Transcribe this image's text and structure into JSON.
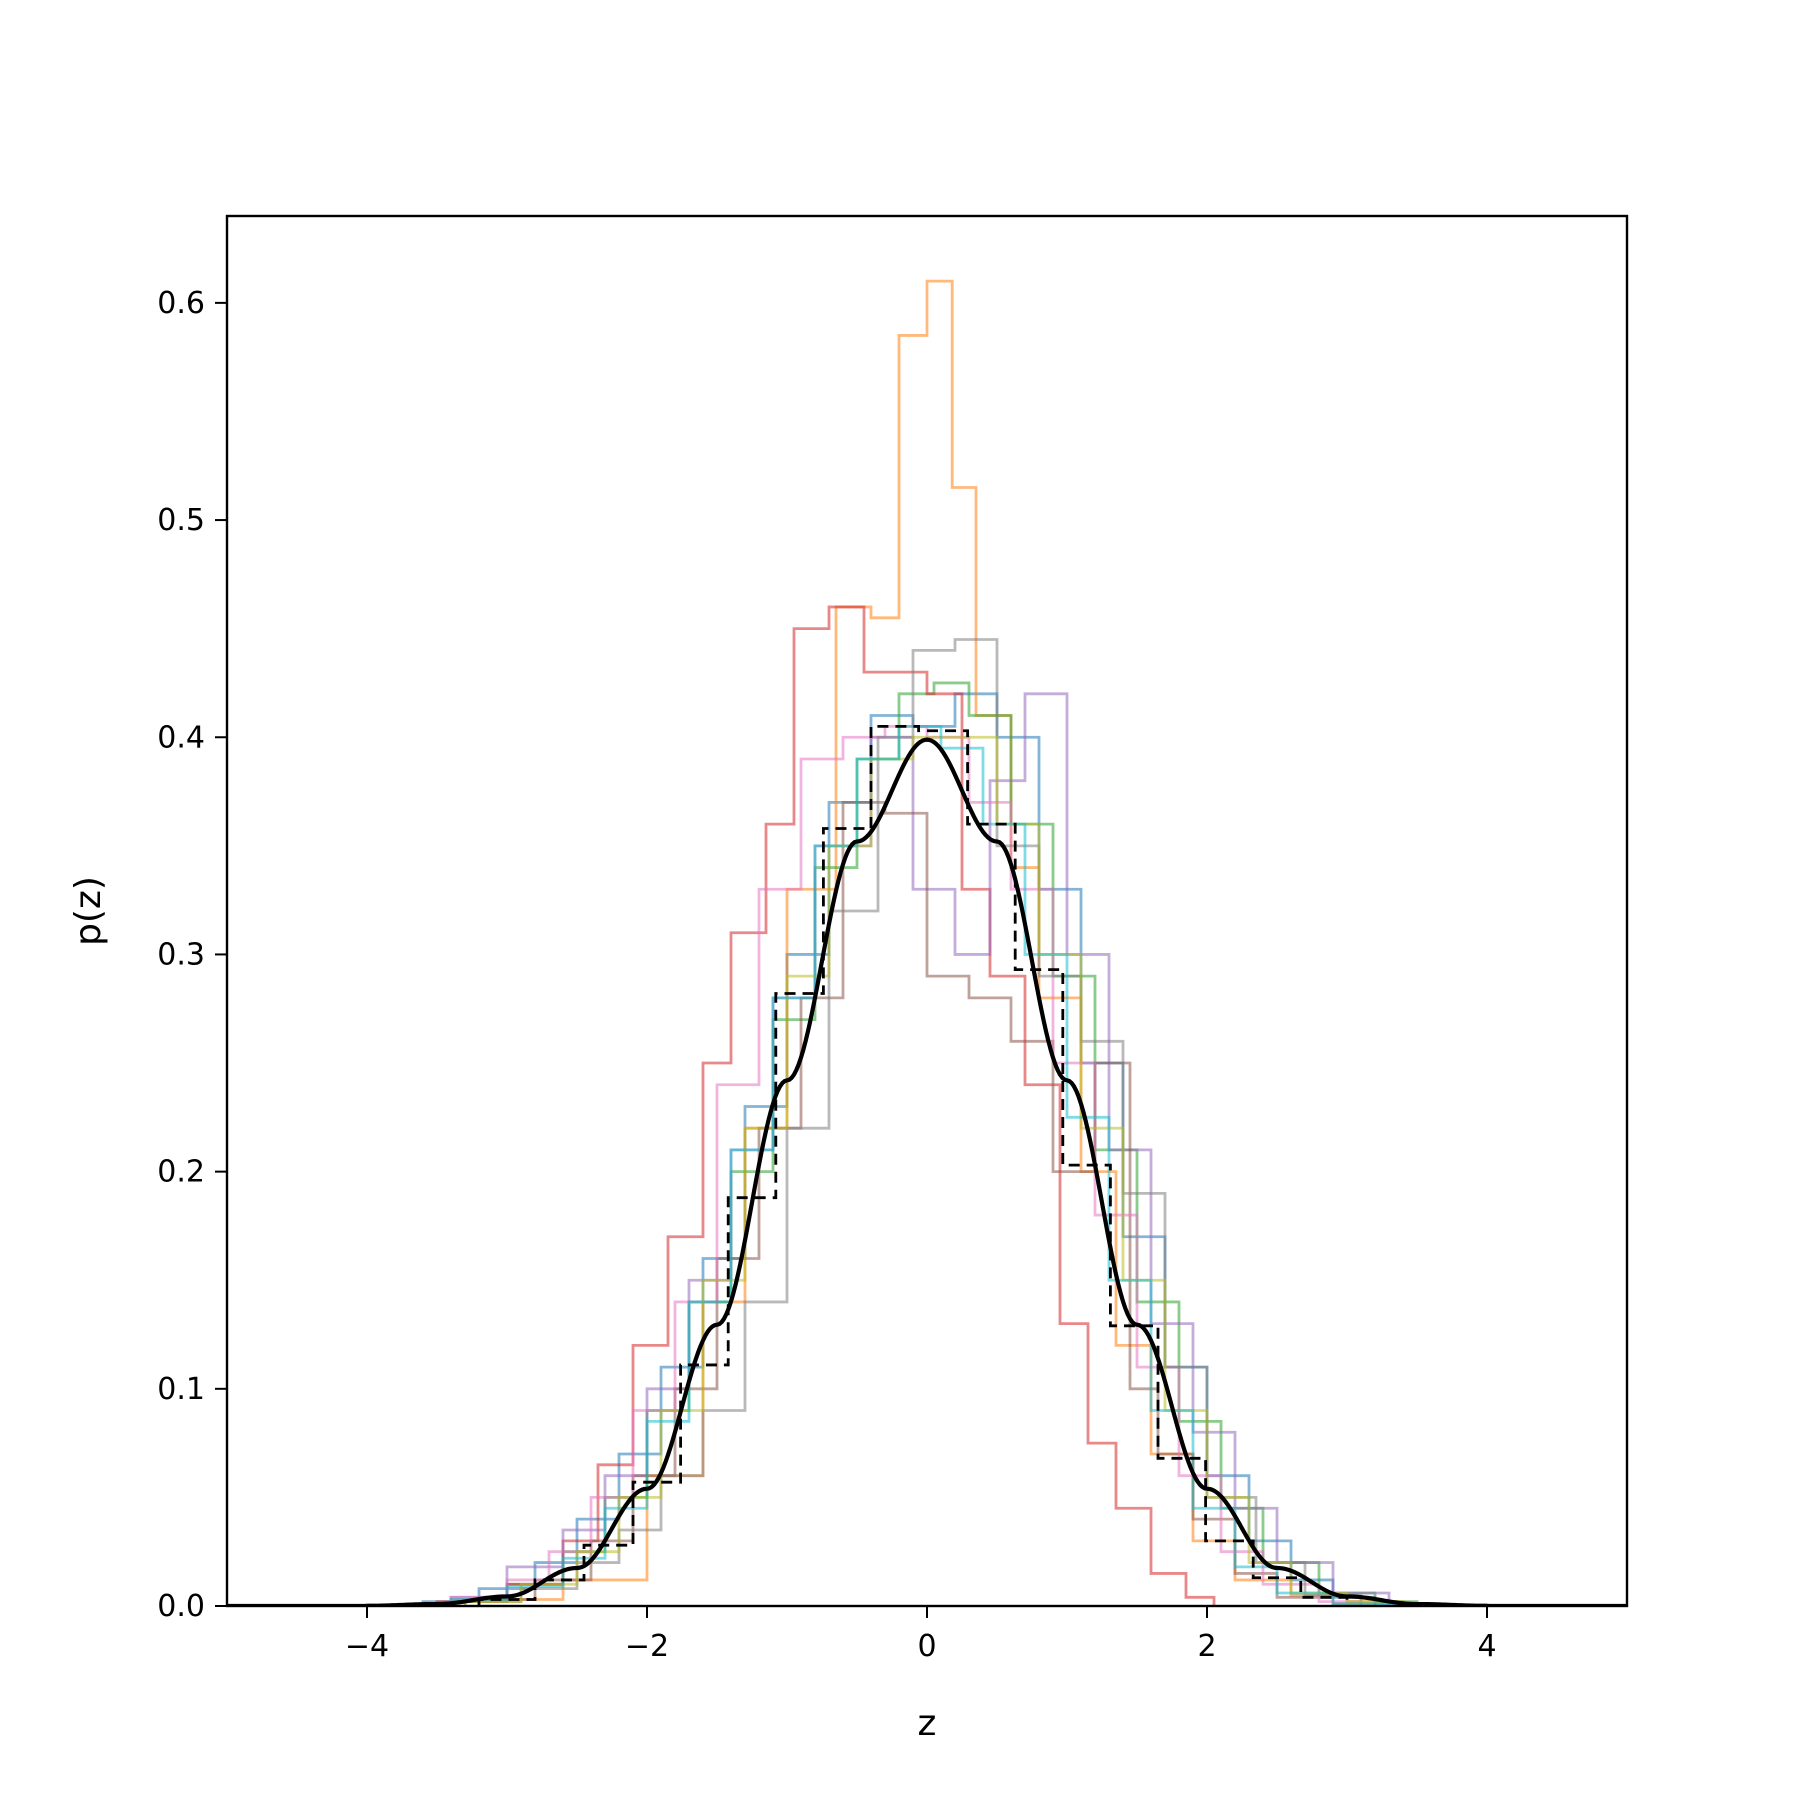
{
  "chart_data": {
    "type": "step_histogram",
    "title": "",
    "xlabel": "z",
    "ylabel": "p(z)",
    "xlim": [
      -5,
      5
    ],
    "ylim": [
      0,
      0.64
    ],
    "x_ticks": [
      -4,
      -2,
      0,
      2,
      4
    ],
    "x_tick_labels": [
      "−4",
      "−2",
      "0",
      "2",
      "4"
    ],
    "y_ticks": [
      0.0,
      0.1,
      0.2,
      0.3,
      0.4,
      0.5,
      0.6
    ],
    "y_tick_labels": [
      "0.0",
      "0.1",
      "0.2",
      "0.3",
      "0.4",
      "0.5",
      "0.6"
    ],
    "grid": false,
    "legend": false,
    "histograms": [
      {
        "color": "#1f77b4",
        "edges": [
          -3.6,
          -3.2,
          -2.8,
          -2.5,
          -2.2,
          -1.9,
          -1.6,
          -1.3,
          -1.0,
          -0.7,
          -0.4,
          -0.1,
          0.2,
          0.5,
          0.8,
          1.1,
          1.4,
          1.7,
          2.0,
          2.3,
          2.6,
          2.9,
          3.2,
          3.6
        ],
        "heights": [
          0.002,
          0.008,
          0.02,
          0.04,
          0.07,
          0.11,
          0.16,
          0.23,
          0.3,
          0.37,
          0.41,
          0.405,
          0.42,
          0.4,
          0.33,
          0.25,
          0.17,
          0.11,
          0.06,
          0.03,
          0.012,
          0.004,
          0.001
        ]
      },
      {
        "color": "#ff7f0e",
        "edges": [
          -3.2,
          -2.6,
          -2.0,
          -1.6,
          -1.3,
          -1.0,
          -0.65,
          -0.4,
          -0.2,
          0.0,
          0.18,
          0.35,
          0.6,
          0.8,
          1.1,
          1.35,
          1.6,
          1.9,
          2.2,
          2.6,
          3.0,
          3.4
        ],
        "heights": [
          0.003,
          0.012,
          0.06,
          0.14,
          0.22,
          0.33,
          0.46,
          0.455,
          0.585,
          0.61,
          0.515,
          0.41,
          0.34,
          0.28,
          0.2,
          0.12,
          0.07,
          0.03,
          0.012,
          0.005,
          0.002
        ]
      },
      {
        "color": "#2ca02c",
        "edges": [
          -3.4,
          -3.0,
          -2.6,
          -2.3,
          -2.0,
          -1.7,
          -1.4,
          -1.1,
          -0.8,
          -0.5,
          -0.2,
          0.05,
          0.3,
          0.6,
          0.9,
          1.2,
          1.5,
          1.8,
          2.1,
          2.4,
          2.8,
          3.2,
          3.5
        ],
        "heights": [
          0.003,
          0.01,
          0.025,
          0.05,
          0.09,
          0.14,
          0.2,
          0.27,
          0.34,
          0.39,
          0.42,
          0.425,
          0.41,
          0.36,
          0.29,
          0.21,
          0.14,
          0.085,
          0.045,
          0.02,
          0.006,
          0.002
        ]
      },
      {
        "color": "#d62728",
        "edges": [
          -3.5,
          -3.0,
          -2.6,
          -2.35,
          -2.1,
          -1.85,
          -1.6,
          -1.4,
          -1.15,
          -0.95,
          -0.7,
          -0.45,
          -0.15,
          0.0,
          0.25,
          0.45,
          0.7,
          0.95,
          1.15,
          1.35,
          1.6,
          1.85,
          2.05
        ],
        "heights": [
          0.002,
          0.01,
          0.03,
          0.065,
          0.12,
          0.17,
          0.25,
          0.31,
          0.36,
          0.45,
          0.46,
          0.43,
          0.43,
          0.42,
          0.33,
          0.29,
          0.24,
          0.13,
          0.075,
          0.045,
          0.015,
          0.004
        ]
      },
      {
        "color": "#9467bd",
        "edges": [
          -3.4,
          -3.0,
          -2.6,
          -2.3,
          -2.0,
          -1.7,
          -1.4,
          -1.1,
          -0.8,
          -0.4,
          -0.1,
          0.2,
          0.45,
          0.7,
          1.0,
          1.3,
          1.6,
          1.9,
          2.2,
          2.5,
          2.9,
          3.3
        ],
        "heights": [
          0.004,
          0.018,
          0.035,
          0.06,
          0.1,
          0.15,
          0.21,
          0.28,
          0.35,
          0.4,
          0.33,
          0.3,
          0.38,
          0.42,
          0.3,
          0.21,
          0.13,
          0.08,
          0.045,
          0.02,
          0.006
        ]
      },
      {
        "color": "#8c564b",
        "edges": [
          -3.2,
          -2.8,
          -2.4,
          -2.1,
          -1.8,
          -1.5,
          -1.2,
          -0.9,
          -0.6,
          -0.3,
          0.0,
          0.3,
          0.6,
          0.9,
          1.2,
          1.45,
          1.65,
          1.9,
          2.2,
          2.5,
          2.9,
          3.2
        ],
        "heights": [
          0.003,
          0.012,
          0.03,
          0.06,
          0.1,
          0.16,
          0.22,
          0.28,
          0.37,
          0.365,
          0.29,
          0.28,
          0.26,
          0.2,
          0.25,
          0.1,
          0.07,
          0.04,
          0.015,
          0.004,
          0.001
        ]
      },
      {
        "color": "#e377c2",
        "edges": [
          -3.4,
          -3.0,
          -2.7,
          -2.4,
          -2.1,
          -1.8,
          -1.5,
          -1.2,
          -0.9,
          -0.6,
          -0.3,
          0.0,
          0.3,
          0.6,
          0.9,
          1.2,
          1.5,
          1.8,
          2.1,
          2.4,
          2.8,
          3.1
        ],
        "heights": [
          0.004,
          0.012,
          0.025,
          0.05,
          0.09,
          0.14,
          0.24,
          0.33,
          0.39,
          0.4,
          0.405,
          0.4,
          0.37,
          0.33,
          0.25,
          0.18,
          0.11,
          0.06,
          0.025,
          0.01,
          0.002
        ]
      },
      {
        "color": "#7f7f7f",
        "edges": [
          -3.3,
          -2.9,
          -2.5,
          -2.2,
          -1.9,
          -1.6,
          -1.3,
          -1.0,
          -0.7,
          -0.35,
          -0.1,
          0.2,
          0.5,
          0.8,
          1.1,
          1.4,
          1.7,
          2.0,
          2.35,
          2.7,
          3.1
        ],
        "heights": [
          0.002,
          0.008,
          0.02,
          0.035,
          0.06,
          0.09,
          0.14,
          0.22,
          0.32,
          0.4,
          0.44,
          0.445,
          0.35,
          0.29,
          0.26,
          0.19,
          0.11,
          0.05,
          0.02,
          0.005
        ]
      },
      {
        "color": "#bcbd22",
        "edges": [
          -3.3,
          -2.9,
          -2.5,
          -2.2,
          -1.9,
          -1.6,
          -1.3,
          -1.0,
          -0.7,
          -0.4,
          -0.1,
          0.2,
          0.5,
          0.8,
          1.1,
          1.4,
          1.7,
          2.0,
          2.3,
          2.6,
          3.0,
          3.4
        ],
        "heights": [
          0.002,
          0.01,
          0.025,
          0.05,
          0.09,
          0.15,
          0.22,
          0.29,
          0.35,
          0.39,
          0.4,
          0.4,
          0.36,
          0.3,
          0.22,
          0.15,
          0.09,
          0.05,
          0.02,
          0.006,
          0.002
        ]
      },
      {
        "color": "#17becf",
        "edges": [
          -3.4,
          -3.0,
          -2.6,
          -2.3,
          -2.0,
          -1.7,
          -1.4,
          -1.1,
          -0.8,
          -0.5,
          -0.2,
          0.1,
          0.4,
          0.7,
          1.0,
          1.3,
          1.6,
          1.9,
          2.2,
          2.5,
          2.9,
          3.3
        ],
        "heights": [
          0.003,
          0.009,
          0.022,
          0.045,
          0.085,
          0.14,
          0.21,
          0.28,
          0.35,
          0.39,
          0.405,
          0.395,
          0.36,
          0.3,
          0.225,
          0.15,
          0.09,
          0.045,
          0.018,
          0.006,
          0.001
        ]
      }
    ],
    "reference_histogram": {
      "color": "#000000",
      "linestyle": "dashed",
      "edges": [
        -3.2,
        -2.8,
        -2.45,
        -2.1,
        -1.76,
        -1.42,
        -1.08,
        -0.74,
        -0.4,
        -0.06,
        0.29,
        0.63,
        0.97,
        1.31,
        1.65,
        1.99,
        2.33,
        2.67,
        3.0
      ],
      "heights": [
        0.003,
        0.012,
        0.028,
        0.057,
        0.111,
        0.188,
        0.282,
        0.358,
        0.405,
        0.403,
        0.36,
        0.293,
        0.203,
        0.129,
        0.068,
        0.03,
        0.013,
        0.004
      ]
    },
    "pdf_curve": {
      "color": "#000000",
      "label": "",
      "x": [
        -4.0,
        -3.5,
        -3.0,
        -2.5,
        -2.0,
        -1.5,
        -1.0,
        -0.5,
        0.0,
        0.5,
        1.0,
        1.5,
        2.0,
        2.5,
        3.0,
        3.5,
        4.0
      ],
      "y": [
        0.0001,
        0.0009,
        0.0044,
        0.0175,
        0.054,
        0.1295,
        0.242,
        0.352,
        0.3989,
        0.352,
        0.242,
        0.1295,
        0.054,
        0.0175,
        0.0044,
        0.0009,
        0.0001
      ]
    }
  }
}
